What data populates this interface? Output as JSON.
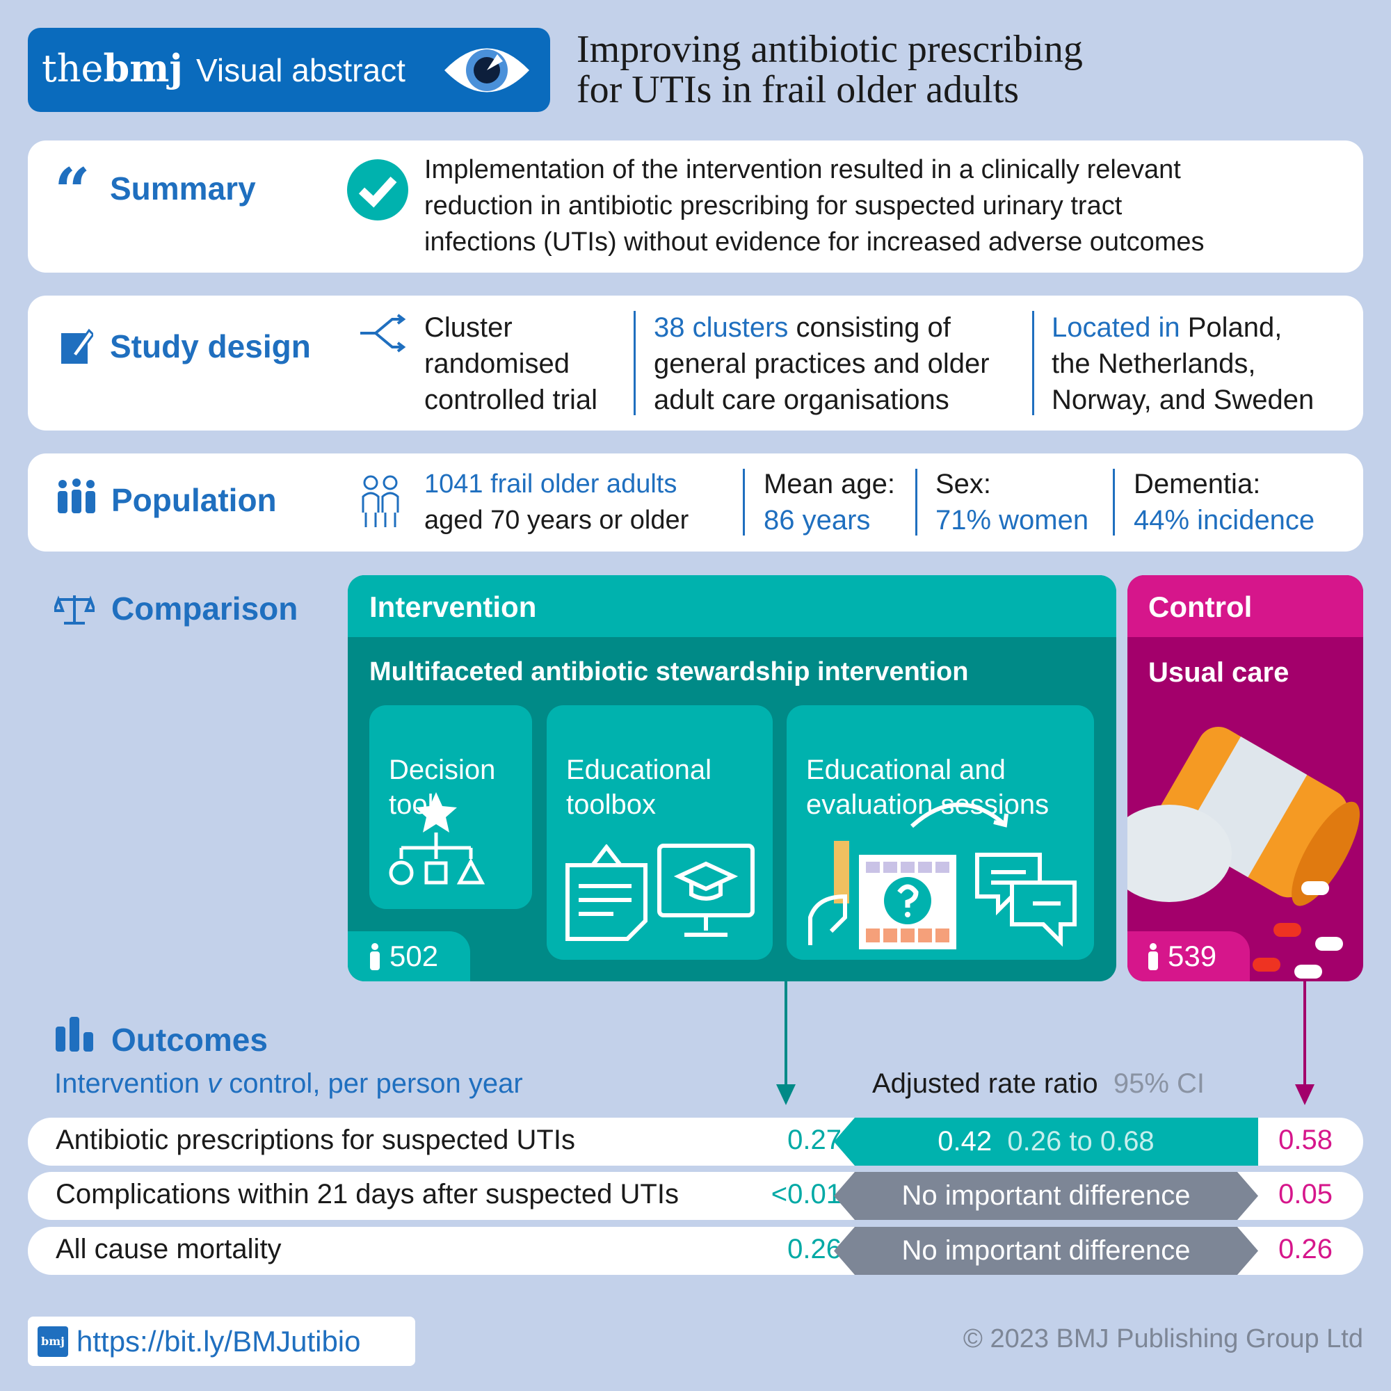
{
  "header": {
    "brand_the": "the",
    "brand_bmj": "bmj",
    "label": "Visual abstract",
    "title_line1": "Improving antibiotic prescribing",
    "title_line2": "for UTIs in frail older adults"
  },
  "summary": {
    "heading": "Summary",
    "text_lines": [
      "Implementation of the intervention resulted in a clinically relevant",
      "reduction in antibiotic prescribing for suspected urinary tract",
      "infections (UTIs) without evidence for increased adverse outcomes"
    ]
  },
  "study_design": {
    "heading": "Study design",
    "design_lines": [
      "Cluster",
      "randomised",
      "controlled trial"
    ],
    "clusters_highlight": "38 clusters",
    "clusters_rest": " consisting of",
    "clusters_lines": [
      "general practices and older",
      "adult care organisations"
    ],
    "located_highlight": "Located in",
    "located_rest": " Poland,",
    "located_lines": [
      "the Netherlands,",
      "Norway, and Sweden"
    ]
  },
  "population": {
    "heading": "Population",
    "count": "1041 frail older adults",
    "count_sub": "aged 70 years or older",
    "age_label": "Mean age:",
    "age_value": "86 years",
    "sex_label": "Sex:",
    "sex_value": "71% women",
    "dementia_label": "Dementia:",
    "dementia_value": "44% incidence"
  },
  "comparison": {
    "heading": "Comparison",
    "intervention": {
      "label": "Intervention",
      "title": "Multifaceted antibiotic stewardship intervention",
      "components": [
        "Decision\ntool",
        "Educational\ntoolbox",
        "Educational and\nevaluation sessions"
      ],
      "n": "502"
    },
    "control": {
      "label": "Control",
      "title": "Usual care",
      "n": "539"
    }
  },
  "outcomes": {
    "heading": "Outcomes",
    "subtitle_pre": "Intervention ",
    "subtitle_v": "v",
    "subtitle_post": " control, per person year",
    "ratio_label": "Adjusted rate ratio",
    "ci_label": "95% CI",
    "rows": [
      {
        "label": "Antibiotic prescriptions for suspected UTIs",
        "intervention": "0.27",
        "ratio": "0.42",
        "ci": "0.26 to 0.68",
        "control": "0.58"
      },
      {
        "label": "Complications within 21 days after suspected UTIs",
        "intervention": "<0.01",
        "result": "No important difference",
        "control": "0.05"
      },
      {
        "label": "All cause mortality",
        "intervention": "0.26",
        "result": "No important difference",
        "control": "0.26"
      }
    ]
  },
  "footer": {
    "logo": "bmj",
    "link": "https://bit.ly/BMJutibio",
    "copyright": "© 2023 BMJ Publishing Group Ltd"
  },
  "colors": {
    "bmj_blue": "#0a6bbd",
    "teal": "#00b2ae",
    "teal_dark": "#008a87",
    "magenta": "#d6168b",
    "magenta_dark": "#a3006b",
    "grey_band": "#7d8696",
    "background": "#c3d1ea"
  }
}
